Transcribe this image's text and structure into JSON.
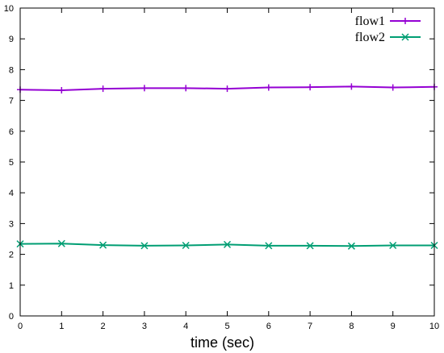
{
  "chart_data": {
    "type": "line",
    "title": "",
    "xlabel": "time (sec)",
    "ylabel": "",
    "xlim": [
      0,
      10
    ],
    "ylim": [
      0,
      10
    ],
    "xticks": [
      "0",
      "1",
      "2",
      "3",
      "4",
      "5",
      "6",
      "7",
      "8",
      "9",
      "10"
    ],
    "yticks": [
      "0",
      "1",
      "2",
      "3",
      "4",
      "5",
      "6",
      "7",
      "8",
      "9",
      "10"
    ],
    "grid": false,
    "legend_position": "top-right",
    "x": [
      0,
      1,
      2,
      3,
      4,
      5,
      6,
      7,
      8,
      9,
      10
    ],
    "series": [
      {
        "name": "flow1",
        "color": "#9400d3",
        "marker": "plus",
        "values": [
          7.35,
          7.33,
          7.38,
          7.4,
          7.4,
          7.38,
          7.42,
          7.43,
          7.45,
          7.42,
          7.44
        ]
      },
      {
        "name": "flow2",
        "color": "#009e73",
        "marker": "cross",
        "values": [
          2.34,
          2.35,
          2.3,
          2.28,
          2.29,
          2.32,
          2.28,
          2.28,
          2.27,
          2.29,
          2.29
        ]
      }
    ]
  }
}
